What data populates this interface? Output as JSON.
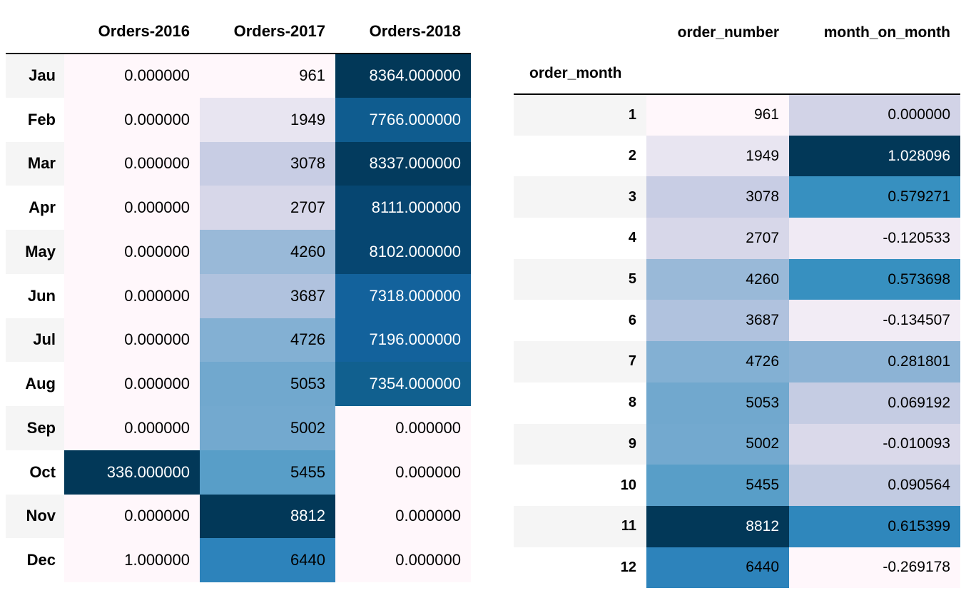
{
  "left_table": {
    "columns": [
      "Orders-2016",
      "Orders-2017",
      "Orders-2018"
    ],
    "rows": [
      {
        "label": "Jau",
        "values": [
          "0.000000",
          "961",
          "8364.000000"
        ],
        "colors": [
          "#fff7fb",
          "#fff7fb",
          "#023858"
        ],
        "text": [
          "light",
          "light",
          "dark"
        ]
      },
      {
        "label": "Feb",
        "values": [
          "0.000000",
          "1949",
          "7766.000000"
        ],
        "colors": [
          "#fff7fb",
          "#e8e5f1",
          "#0f5c8f"
        ],
        "text": [
          "light",
          "light",
          "dark"
        ]
      },
      {
        "label": "Mar",
        "values": [
          "0.000000",
          "3078",
          "8337.000000"
        ],
        "colors": [
          "#fff7fb",
          "#c8cde4",
          "#033b5e"
        ],
        "text": [
          "light",
          "light",
          "dark"
        ]
      },
      {
        "label": "Apr",
        "values": [
          "0.000000",
          "2707",
          "8111.000000"
        ],
        "colors": [
          "#fff7fb",
          "#d7d7e9",
          "#064671"
        ],
        "text": [
          "light",
          "light",
          "dark"
        ]
      },
      {
        "label": "May",
        "values": [
          "0.000000",
          "4260",
          "8102.000000"
        ],
        "colors": [
          "#fff7fb",
          "#99b9d8",
          "#064671"
        ],
        "text": [
          "light",
          "light",
          "dark"
        ]
      },
      {
        "label": "Jun",
        "values": [
          "0.000000",
          "3687",
          "7318.000000"
        ],
        "colors": [
          "#fff7fb",
          "#b0c2de",
          "#13629c"
        ],
        "text": [
          "light",
          "light",
          "dark"
        ]
      },
      {
        "label": "Jul",
        "values": [
          "0.000000",
          "4726",
          "7196.000000"
        ],
        "colors": [
          "#fff7fb",
          "#83b0d3",
          "#13629c"
        ],
        "text": [
          "light",
          "light",
          "dark"
        ]
      },
      {
        "label": "Aug",
        "values": [
          "0.000000",
          "5053",
          "7354.000000"
        ],
        "colors": [
          "#fff7fb",
          "#71a8ce",
          "#11608f"
        ],
        "text": [
          "light",
          "light",
          "dark"
        ]
      },
      {
        "label": "Sep",
        "values": [
          "0.000000",
          "5002",
          "0.000000"
        ],
        "colors": [
          "#fff7fb",
          "#73a9cf",
          "#fff7fb"
        ],
        "text": [
          "light",
          "light",
          "light"
        ]
      },
      {
        "label": "Oct",
        "values": [
          "336.000000",
          "5455",
          "0.000000"
        ],
        "colors": [
          "#023858",
          "#589ec8",
          "#fff7fb"
        ],
        "text": [
          "dark",
          "light",
          "light"
        ]
      },
      {
        "label": "Nov",
        "values": [
          "0.000000",
          "8812",
          "0.000000"
        ],
        "colors": [
          "#fff7fb",
          "#023858",
          "#fff7fb"
        ],
        "text": [
          "light",
          "dark",
          "light"
        ]
      },
      {
        "label": "Dec",
        "values": [
          "1.000000",
          "6440",
          "0.000000"
        ],
        "colors": [
          "#fff7fb",
          "#2d83bb",
          "#fff7fb"
        ],
        "text": [
          "light",
          "light",
          "light"
        ]
      }
    ]
  },
  "right_table": {
    "columns": [
      "order_number",
      "month_on_month"
    ],
    "index_name": "order_month",
    "rows": [
      {
        "label": "1",
        "values": [
          "961",
          "0.000000"
        ],
        "colors": [
          "#fff7fb",
          "#d2d3e7"
        ],
        "text": [
          "light",
          "light"
        ]
      },
      {
        "label": "2",
        "values": [
          "1949",
          "1.028096"
        ],
        "colors": [
          "#e8e5f1",
          "#023858"
        ],
        "text": [
          "light",
          "dark"
        ]
      },
      {
        "label": "3",
        "values": [
          "3078",
          "0.579271"
        ],
        "colors": [
          "#c8cde4",
          "#3790c0"
        ],
        "text": [
          "light",
          "light"
        ]
      },
      {
        "label": "4",
        "values": [
          "2707",
          "-0.120533"
        ],
        "colors": [
          "#d7d7e9",
          "#f0eaf4"
        ],
        "text": [
          "light",
          "light"
        ]
      },
      {
        "label": "5",
        "values": [
          "4260",
          "0.573698"
        ],
        "colors": [
          "#99b9d8",
          "#3790c0"
        ],
        "text": [
          "light",
          "light"
        ]
      },
      {
        "label": "6",
        "values": [
          "3687",
          "-0.134507"
        ],
        "colors": [
          "#b0c2de",
          "#f2ecf5"
        ],
        "text": [
          "light",
          "light"
        ]
      },
      {
        "label": "7",
        "values": [
          "4726",
          "0.281801"
        ],
        "colors": [
          "#83b0d3",
          "#8cb3d5"
        ],
        "text": [
          "light",
          "light"
        ]
      },
      {
        "label": "8",
        "values": [
          "5053",
          "0.069192"
        ],
        "colors": [
          "#71a8ce",
          "#c5cce3"
        ],
        "text": [
          "light",
          "light"
        ]
      },
      {
        "label": "9",
        "values": [
          "5002",
          "-0.010093"
        ],
        "colors": [
          "#73a9cf",
          "#dad9ea"
        ],
        "text": [
          "light",
          "light"
        ]
      },
      {
        "label": "10",
        "values": [
          "5455",
          "0.090564"
        ],
        "colors": [
          "#589ec8",
          "#c2cbe2"
        ],
        "text": [
          "light",
          "light"
        ]
      },
      {
        "label": "11",
        "values": [
          "8812",
          "0.615399"
        ],
        "colors": [
          "#023858",
          "#2f87bc"
        ],
        "text": [
          "dark",
          "light"
        ]
      },
      {
        "label": "12",
        "values": [
          "6440",
          "-0.269178"
        ],
        "colors": [
          "#2d83bb",
          "#fff7fb"
        ],
        "text": [
          "light",
          "light"
        ]
      }
    ]
  }
}
